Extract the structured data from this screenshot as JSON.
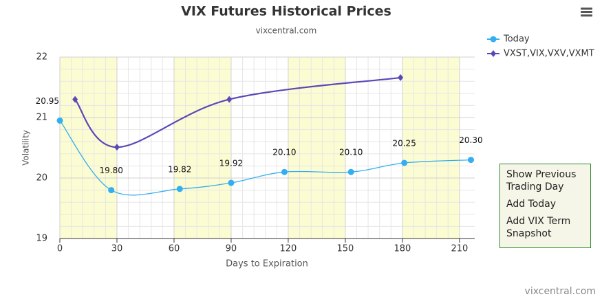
{
  "chart_data": {
    "type": "line",
    "title": "VIX Futures Historical Prices",
    "subtitle": "vixcentral.com",
    "x_label": "Days to Expiration",
    "y_label": "Volatility",
    "xlim": [
      0,
      218
    ],
    "xticks": [
      0,
      30,
      60,
      90,
      120,
      150,
      180,
      210
    ],
    "ylim": [
      19,
      22
    ],
    "yticks": [
      19,
      20,
      21,
      22
    ],
    "grid": true,
    "plot_bands": [
      [
        0,
        30
      ],
      [
        60,
        90
      ],
      [
        120,
        150
      ],
      [
        180,
        210
      ]
    ],
    "band_color": "#fcfcd2",
    "series": [
      {
        "name": "Today",
        "color": "#33aef0",
        "marker": "circle",
        "x": [
          0,
          27,
          63,
          90,
          118,
          153,
          181,
          216
        ],
        "values": [
          20.95,
          19.8,
          19.82,
          19.92,
          20.1,
          20.1,
          20.25,
          20.3
        ],
        "value_labels": [
          "20.95",
          "19.80",
          "19.82",
          "19.92",
          "20.10",
          "20.10",
          "20.25",
          "20.30"
        ]
      },
      {
        "name": "VXST,VIX,VXV,VXMT",
        "color": "#5a48b8",
        "marker": "diamond",
        "x": [
          8,
          30,
          89,
          179
        ],
        "values": [
          21.3,
          20.51,
          21.3,
          21.66
        ]
      }
    ]
  },
  "menu_items": [
    "Show Previous Trading Day",
    "Add Today",
    "Add VIX Term Snapshot"
  ],
  "credit": "vixcentral.com"
}
